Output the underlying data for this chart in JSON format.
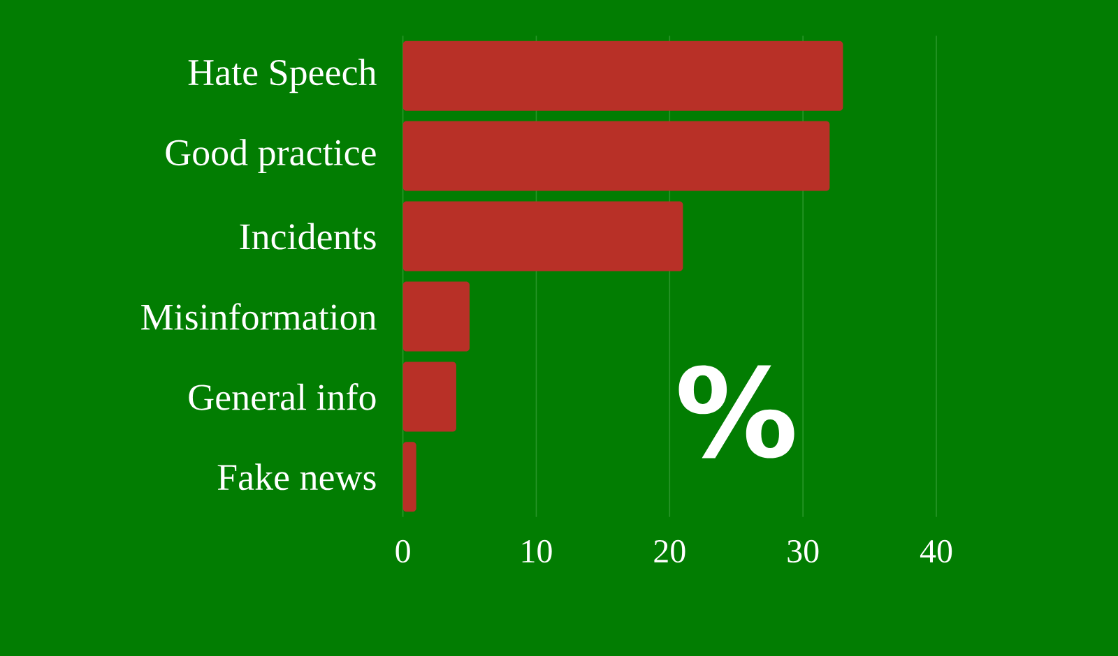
{
  "chart_data": {
    "type": "bar",
    "orientation": "horizontal",
    "categories": [
      "Hate Speech",
      "Good practice",
      "Incidents",
      "Misinformation",
      "General info",
      "Fake news"
    ],
    "values": [
      33,
      32,
      21,
      5,
      4,
      1
    ],
    "color": "#b83027",
    "xlim": [
      0,
      40
    ],
    "xticks": [
      0,
      10,
      20,
      30,
      40
    ],
    "grid": "x",
    "annotations": [
      "%"
    ]
  }
}
